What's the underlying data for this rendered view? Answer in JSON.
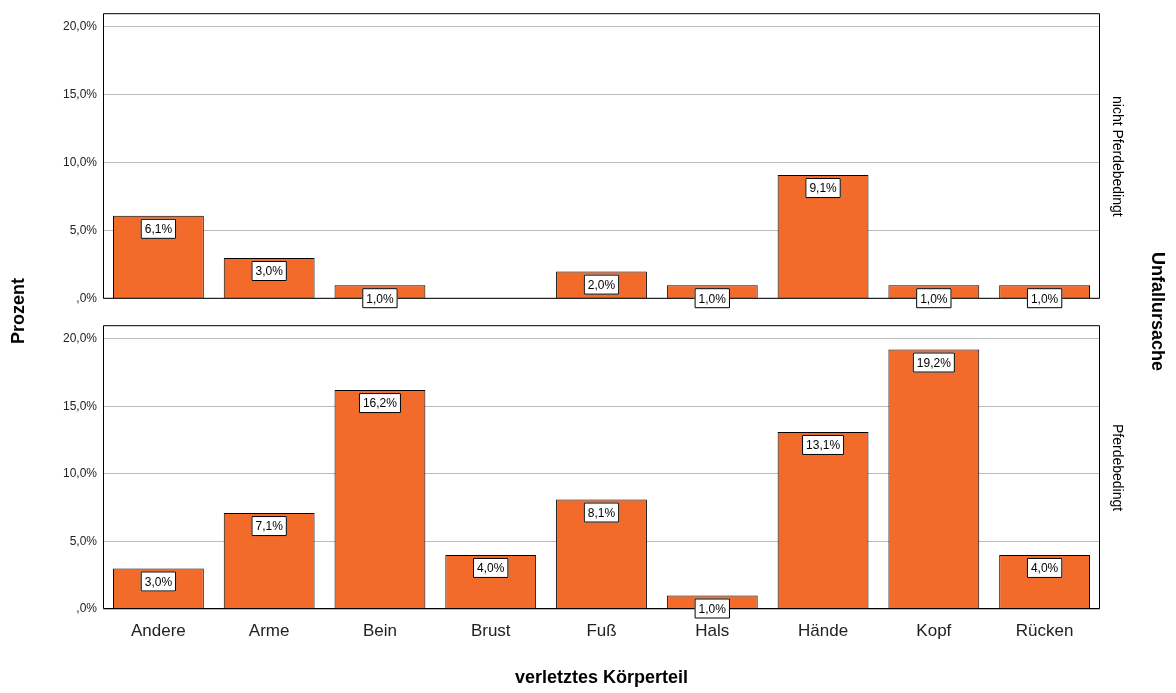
{
  "chart_data": [
    {
      "type": "bar",
      "ylabel": "Prozent",
      "y2label": "nicht Pferdebedingt",
      "annotations": [
        "Unfallursache"
      ],
      "categories": [
        null,
        null,
        null,
        null,
        null,
        null,
        null,
        null,
        null
      ],
      "values": [
        6.1,
        3.0,
        1.0,
        null,
        2.0,
        1.0,
        9.1,
        1.0,
        1.0
      ],
      "value_labels": [
        "6,1%",
        "3,0%",
        "1,0%",
        null,
        "2,0%",
        "1,0%",
        "9,1%",
        "1,0%",
        "1,0%"
      ],
      "color": "#f26b2b",
      "ylim": [
        0,
        21
      ],
      "yticks": [
        {
          "value": 0,
          "label": ",0%"
        },
        {
          "value": 5,
          "label": "5,0%"
        },
        {
          "value": 10,
          "label": "10,0%"
        },
        {
          "value": 15,
          "label": "15,0%"
        },
        {
          "value": 20,
          "label": "20,0%"
        }
      ],
      "grid": "y",
      "tick_labels": "y"
    },
    {
      "type": "bar",
      "xlabel": "verletztes Körperteil",
      "y2label": "Pferdebedingt",
      "categories": [
        "Andere",
        "Arme",
        "Bein",
        "Brust",
        "Fuß",
        "Hals",
        "Hände",
        "Kopf",
        "Rücken"
      ],
      "values": [
        3.0,
        7.1,
        16.2,
        4.0,
        8.1,
        1.0,
        13.1,
        19.2,
        4.0
      ],
      "value_labels": [
        "3,0%",
        "7,1%",
        "16,2%",
        "4,0%",
        "8,1%",
        "1,0%",
        "13,1%",
        "19,2%",
        "4,0%"
      ],
      "color": "#f26b2b",
      "ylim": [
        0,
        21
      ],
      "yticks": [
        {
          "value": 0,
          "label": ",0%"
        },
        {
          "value": 5,
          "label": "5,0%"
        },
        {
          "value": 10,
          "label": "10,0%"
        },
        {
          "value": 15,
          "label": "15,0%"
        },
        {
          "value": 20,
          "label": "20,0%"
        }
      ],
      "grid": "y"
    }
  ]
}
